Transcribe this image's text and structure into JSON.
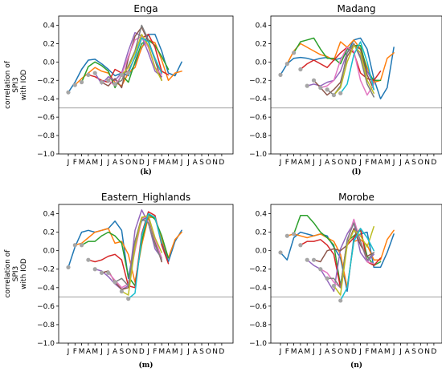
{
  "ylabel_lines": [
    "correlation of",
    "SPI3",
    "with IOD"
  ],
  "month_ticks": [
    "J",
    "F",
    "M",
    "A",
    "M",
    "J",
    "J",
    "A",
    "S",
    "O",
    "N",
    "D",
    "J",
    "F",
    "M",
    "A",
    "M",
    "J",
    "J",
    "A",
    "S",
    "O",
    "N",
    "D"
  ],
  "colors": [
    "#1f77b4",
    "#ff7f0e",
    "#2ca02c",
    "#d62728",
    "#9467bd",
    "#8c564b",
    "#e377c2",
    "#7f7f7f",
    "#bcbd22",
    "#17becf"
  ],
  "reference_line": -0.5,
  "chart_data": [
    {
      "type": "line",
      "title": "Enga",
      "panel_label": "(k)",
      "ylim": [
        -1.0,
        0.5
      ],
      "yticks": [
        "0.4",
        "0.2",
        "0.0",
        "−0.2",
        "−0.4",
        "−0.6",
        "−0.8",
        "−1.0"
      ],
      "x_categories": [
        "J",
        "F",
        "M",
        "A",
        "M",
        "J",
        "J",
        "A",
        "S",
        "O",
        "N",
        "D",
        "J",
        "F",
        "M",
        "A",
        "M",
        "J",
        "J",
        "A",
        "S",
        "O",
        "N",
        "D"
      ],
      "series": [
        {
          "start": 0,
          "values": [
            -0.33,
            -0.22,
            -0.08,
            0.02,
            0.03,
            -0.02,
            -0.08,
            -0.15,
            -0.12,
            -0.15,
            -0.02,
            0.15,
            0.3,
            0.3,
            0.12,
            -0.12,
            -0.15,
            0.0
          ]
        },
        {
          "start": 1,
          "values": [
            -0.25,
            -0.18,
            -0.12,
            -0.06,
            -0.1,
            -0.12,
            -0.22,
            -0.26,
            -0.12,
            -0.06,
            0.16,
            0.24,
            0.21,
            0.02,
            -0.2,
            -0.12,
            -0.1
          ]
        },
        {
          "start": 2,
          "values": [
            -0.22,
            -0.05,
            0.0,
            -0.04,
            -0.1,
            -0.28,
            -0.14,
            -0.22,
            0.0,
            0.2,
            0.24,
            0.18,
            0.06,
            -0.08
          ]
        },
        {
          "start": 3,
          "values": [
            -0.14,
            -0.16,
            -0.2,
            -0.22,
            -0.08,
            -0.12,
            -0.1,
            0.05,
            0.26,
            0.3,
            0.16,
            -0.1,
            -0.14
          ]
        },
        {
          "start": 4,
          "values": [
            -0.12,
            -0.24,
            -0.16,
            -0.2,
            -0.12,
            0.12,
            0.32,
            0.28,
            0.1,
            -0.1,
            -0.16
          ]
        },
        {
          "start": 5,
          "values": [
            -0.22,
            -0.26,
            -0.18,
            -0.28,
            0.04,
            0.28,
            0.38,
            0.22,
            0.02,
            -0.2
          ]
        },
        {
          "start": 6,
          "values": [
            -0.2,
            -0.26,
            -0.14,
            0.06,
            0.24,
            0.28,
            0.16,
            -0.06,
            -0.14
          ]
        },
        {
          "start": 7,
          "values": [
            -0.24,
            -0.2,
            -0.04,
            0.12,
            0.4,
            0.24,
            0.02,
            -0.12
          ]
        },
        {
          "start": 8,
          "values": [
            -0.14,
            -0.06,
            0.1,
            0.3,
            0.18,
            -0.06,
            -0.2
          ]
        },
        {
          "start": 9,
          "values": [
            -0.12,
            0.06,
            0.26,
            0.22,
            0.04,
            -0.12
          ]
        }
      ]
    },
    {
      "type": "line",
      "title": "Madang",
      "panel_label": "(l)",
      "ylim": [
        -1.0,
        0.5
      ],
      "yticks": [
        "0.4",
        "0.2",
        "0.0",
        "−0.2",
        "−0.4",
        "−0.6",
        "−0.8",
        "−1.0"
      ],
      "x_categories": [
        "J",
        "F",
        "M",
        "A",
        "M",
        "J",
        "J",
        "A",
        "S",
        "O",
        "N",
        "D",
        "J",
        "F",
        "M",
        "A",
        "M",
        "J",
        "J",
        "A",
        "S",
        "O",
        "N",
        "D"
      ],
      "series": [
        {
          "start": 0,
          "values": [
            -0.14,
            -0.02,
            0.04,
            0.05,
            0.04,
            0.02,
            0.04,
            0.05,
            0.02,
            0.04,
            0.1,
            0.24,
            0.26,
            0.14,
            -0.18,
            -0.4,
            -0.28,
            0.16
          ]
        },
        {
          "start": 1,
          "values": [
            -0.02,
            0.12,
            0.2,
            0.16,
            0.12,
            0.08,
            0.06,
            0.02,
            0.22,
            0.16,
            0.24,
            0.14,
            -0.06,
            -0.22,
            -0.2,
            0.04,
            0.1
          ]
        },
        {
          "start": 2,
          "values": [
            0.1,
            0.22,
            0.24,
            0.26,
            0.14,
            0.04,
            0.04,
            -0.02,
            0.14,
            0.18,
            0.18,
            -0.1,
            -0.2,
            -0.2
          ]
        },
        {
          "start": 3,
          "values": [
            -0.08,
            -0.02,
            0.02,
            -0.02,
            -0.06,
            0.02,
            0.1,
            0.16,
            0.1,
            -0.12,
            -0.18,
            -0.2,
            -0.1
          ]
        },
        {
          "start": 4,
          "values": [
            -0.26,
            -0.24,
            -0.26,
            -0.22,
            -0.2,
            -0.1,
            0.1,
            0.2,
            0.06,
            -0.1,
            -0.24
          ]
        },
        {
          "start": 5,
          "values": [
            -0.2,
            -0.28,
            -0.36,
            -0.3,
            -0.22,
            0.06,
            0.18,
            0.14,
            -0.14,
            -0.3
          ]
        },
        {
          "start": 6,
          "values": [
            -0.28,
            -0.26,
            -0.2,
            0.02,
            0.16,
            0.12,
            -0.2,
            -0.36,
            -0.24
          ]
        },
        {
          "start": 7,
          "values": [
            -0.3,
            -0.36,
            -0.26,
            0.1,
            0.2,
            0.04,
            -0.24,
            -0.38
          ]
        },
        {
          "start": 8,
          "values": [
            -0.36,
            -0.28,
            0.0,
            0.18,
            0.1,
            -0.2,
            -0.34
          ]
        },
        {
          "start": 9,
          "values": [
            -0.34,
            -0.24,
            0.08,
            0.22,
            0.0,
            -0.3
          ]
        }
      ]
    },
    {
      "type": "line",
      "title": "Eastern_Highlands",
      "panel_label": "(m)",
      "ylim": [
        -1.0,
        0.5
      ],
      "yticks": [
        "0.4",
        "0.2",
        "0.0",
        "−0.2",
        "−0.4",
        "−0.6",
        "−0.8",
        "−1.0"
      ],
      "x_categories": [
        "J",
        "F",
        "M",
        "A",
        "M",
        "J",
        "J",
        "A",
        "S",
        "O",
        "N",
        "D",
        "J",
        "F",
        "M",
        "A",
        "M",
        "J",
        "J",
        "A",
        "S",
        "O",
        "N",
        "D"
      ],
      "series": [
        {
          "start": 0,
          "values": [
            -0.18,
            0.04,
            0.2,
            0.22,
            0.2,
            0.22,
            0.24,
            0.32,
            0.22,
            -0.3,
            0.1,
            0.32,
            0.38,
            0.36,
            0.1,
            -0.12,
            0.1,
            0.22
          ]
        },
        {
          "start": 1,
          "values": [
            0.06,
            0.08,
            0.14,
            0.2,
            0.22,
            0.24,
            0.08,
            0.1,
            -0.04,
            -0.34,
            0.06,
            0.36,
            0.36,
            0.12,
            -0.08,
            0.12,
            0.2
          ]
        },
        {
          "start": 2,
          "values": [
            0.06,
            0.1,
            0.1,
            0.16,
            0.2,
            0.16,
            0.08,
            -0.28,
            -0.38,
            0.1,
            0.4,
            0.34,
            0.16,
            -0.08
          ]
        },
        {
          "start": 3,
          "values": [
            -0.1,
            -0.12,
            -0.1,
            -0.06,
            -0.04,
            -0.1,
            -0.38,
            -0.4,
            0.18,
            0.42,
            0.38,
            0.06,
            -0.14
          ]
        },
        {
          "start": 4,
          "values": [
            -0.2,
            -0.22,
            -0.28,
            -0.36,
            -0.42,
            -0.38,
            0.22,
            0.44,
            0.3,
            0.02,
            -0.08
          ]
        },
        {
          "start": 5,
          "values": [
            -0.24,
            -0.22,
            -0.34,
            -0.42,
            -0.4,
            0.1,
            0.36,
            0.36,
            0.1,
            -0.12
          ]
        },
        {
          "start": 6,
          "values": [
            -0.24,
            -0.32,
            -0.4,
            -0.36,
            0.0,
            0.34,
            0.38,
            0.12,
            -0.08
          ]
        },
        {
          "start": 7,
          "values": [
            -0.34,
            -0.3,
            -0.38,
            0.1,
            0.34,
            0.3,
            0.06,
            -0.1
          ]
        },
        {
          "start": 8,
          "values": [
            -0.44,
            -0.48,
            0.04,
            0.36,
            0.38,
            0.14,
            -0.02
          ]
        },
        {
          "start": 9,
          "values": [
            -0.52,
            -0.46,
            0.16,
            0.4,
            0.36,
            0.08
          ]
        }
      ]
    },
    {
      "type": "line",
      "title": "Morobe",
      "panel_label": "(n)",
      "ylim": [
        -1.0,
        0.5
      ],
      "yticks": [
        "0.4",
        "0.2",
        "0.0",
        "−0.2",
        "−0.4",
        "−0.6",
        "−0.8",
        "−1.0"
      ],
      "x_categories": [
        "J",
        "F",
        "M",
        "A",
        "M",
        "J",
        "J",
        "A",
        "S",
        "O",
        "N",
        "D",
        "J",
        "F",
        "M",
        "A",
        "M",
        "J",
        "J",
        "A",
        "S",
        "O",
        "N",
        "D"
      ],
      "series": [
        {
          "start": 0,
          "values": [
            -0.02,
            -0.1,
            0.14,
            0.2,
            0.18,
            0.16,
            0.18,
            0.16,
            0.04,
            -0.08,
            -0.44,
            0.14,
            0.18,
            0.2,
            -0.18,
            -0.18,
            -0.02,
            0.18
          ]
        },
        {
          "start": 1,
          "values": [
            0.16,
            0.18,
            0.16,
            0.14,
            0.16,
            0.18,
            0.14,
            0.1,
            -0.04,
            -0.4,
            0.1,
            0.12,
            0.06,
            -0.1,
            -0.1,
            0.12,
            0.22
          ]
        },
        {
          "start": 2,
          "values": [
            0.18,
            0.38,
            0.38,
            0.3,
            0.2,
            0.14,
            0.06,
            -0.38,
            0.1,
            0.16,
            0.22,
            -0.06,
            -0.16,
            -0.12
          ]
        },
        {
          "start": 3,
          "values": [
            0.06,
            0.1,
            0.1,
            0.12,
            0.06,
            -0.04,
            -0.4,
            0.06,
            0.14,
            0.24,
            -0.12,
            -0.16,
            -0.08
          ]
        },
        {
          "start": 4,
          "values": [
            -0.1,
            -0.16,
            -0.2,
            -0.32,
            -0.44,
            0.02,
            0.18,
            0.3,
            -0.02,
            -0.12,
            -0.04
          ]
        },
        {
          "start": 5,
          "values": [
            -0.1,
            -0.12,
            0.0,
            0.02,
            0.0,
            0.06,
            0.24,
            0.06,
            -0.06,
            -0.02
          ]
        },
        {
          "start": 6,
          "values": [
            -0.2,
            -0.24,
            -0.34,
            -0.4,
            0.1,
            0.34,
            0.1,
            -0.12,
            -0.14
          ]
        },
        {
          "start": 7,
          "values": [
            -0.3,
            -0.3,
            -0.4,
            0.12,
            0.3,
            0.1,
            -0.1,
            -0.02
          ]
        },
        {
          "start": 8,
          "values": [
            -0.38,
            -0.48,
            0.06,
            0.22,
            0.16,
            0.04,
            0.26
          ]
        },
        {
          "start": 9,
          "values": [
            -0.54,
            -0.4,
            0.1,
            0.24,
            0.14,
            0.0
          ]
        }
      ]
    }
  ]
}
